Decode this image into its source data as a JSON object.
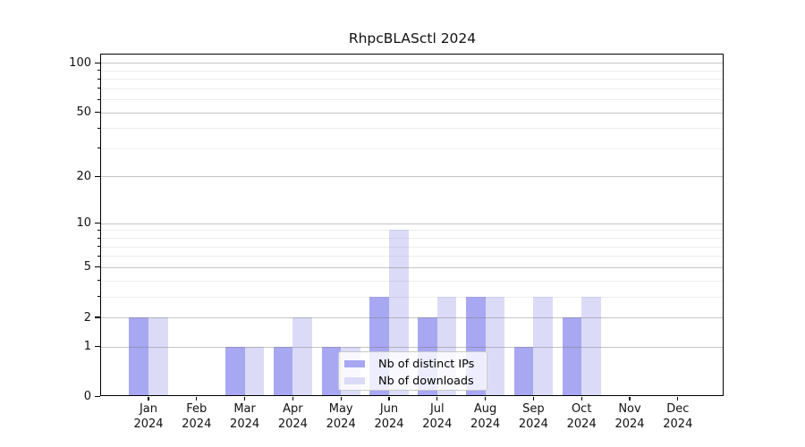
{
  "title": "RhpcBLASctl 2024",
  "chart_data": {
    "type": "bar",
    "title": "RhpcBLASctl 2024",
    "categories": [
      "Jan 2024",
      "Feb 2024",
      "Mar 2024",
      "Apr 2024",
      "May 2024",
      "Jun 2024",
      "Jul 2024",
      "Aug 2024",
      "Sep 2024",
      "Oct 2024",
      "Nov 2024",
      "Dec 2024"
    ],
    "series": [
      {
        "name": "Nb of distinct IPs",
        "color": "#a7a7f2",
        "values": [
          2,
          0,
          1,
          1,
          1,
          3,
          2,
          3,
          1,
          2,
          0,
          0
        ]
      },
      {
        "name": "Nb of downloads",
        "color": "#dbdbf8",
        "values": [
          2,
          0,
          1,
          2,
          1,
          9,
          3,
          3,
          3,
          3,
          0,
          0
        ]
      }
    ],
    "xlabel": "",
    "ylabel": "",
    "y_scale": "log1p",
    "ylim": [
      0,
      113
    ],
    "y_ticks": [
      0,
      1,
      2,
      5,
      10,
      20,
      50,
      100
    ],
    "y_minor_ticks": [
      3,
      4,
      6,
      7,
      8,
      9,
      30,
      40,
      60,
      70,
      80,
      90
    ],
    "grid": "on",
    "legend_position": "lower center"
  },
  "legend": {
    "items": [
      {
        "label": "Nb of distinct IPs"
      },
      {
        "label": "Nb of downloads"
      }
    ]
  }
}
